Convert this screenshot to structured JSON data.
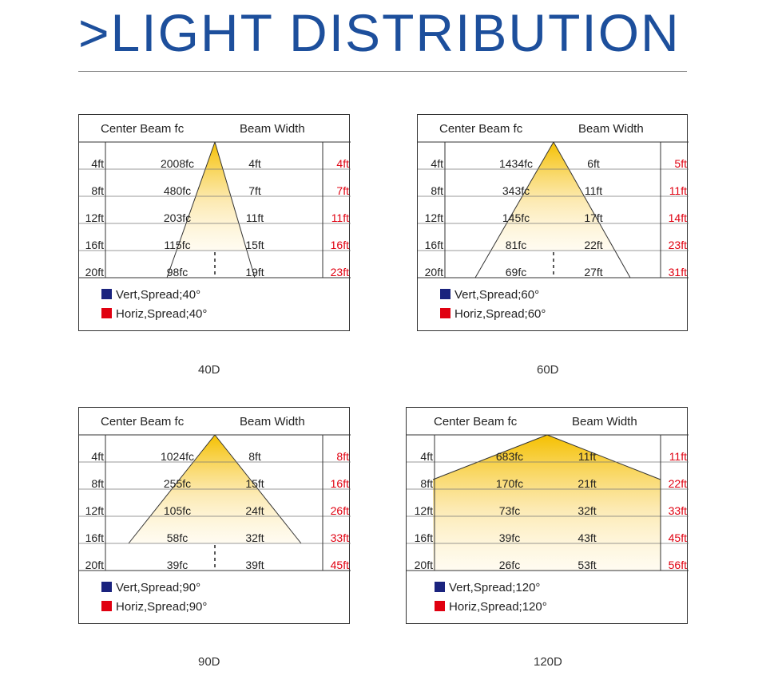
{
  "page": {
    "title": ">LIGHT DISTRIBUTION"
  },
  "colors": {
    "brand_blue": "#1d4f9c",
    "legend_vert": "#1a237e",
    "legend_horiz": "#e00010",
    "beam_glow": "#f5c000"
  },
  "panels": [
    {
      "caption": "40D",
      "header_left": "Center Beam fc",
      "header_right": "Beam Width",
      "distances": [
        "4ft",
        "8ft",
        "12ft",
        "16ft",
        "20ft"
      ],
      "center_fc": [
        "2008fc",
        "480fc",
        "203fc",
        "115fc",
        "98fc"
      ],
      "vert_width": [
        "4ft",
        "7ft",
        "11ft",
        "15ft",
        "19ft"
      ],
      "horiz_width": [
        "4ft",
        "7ft",
        "11ft",
        "16ft",
        "23ft"
      ],
      "legend_vert": "Vert,Spread;40°",
      "legend_horiz": "Horiz,Spread;40°"
    },
    {
      "caption": "60D",
      "header_left": "Center Beam fc",
      "header_right": "Beam Width",
      "distances": [
        "4ft",
        "8ft",
        "12ft",
        "16ft",
        "20ft"
      ],
      "center_fc": [
        "1434fc",
        "343fc",
        "145fc",
        "81fc",
        "69fc"
      ],
      "vert_width": [
        "6ft",
        "11ft",
        "17ft",
        "22ft",
        "27ft"
      ],
      "horiz_width": [
        "5ft",
        "11ft",
        "14ft",
        "23ft",
        "31ft"
      ],
      "legend_vert": "Vert,Spread;60°",
      "legend_horiz": "Horiz,Spread;60°"
    },
    {
      "caption": "90D",
      "header_left": "Center Beam fc",
      "header_right": "Beam Width",
      "distances": [
        "4ft",
        "8ft",
        "12ft",
        "16ft",
        "20ft"
      ],
      "center_fc": [
        "1024fc",
        "255fc",
        "105fc",
        "58fc",
        "39fc"
      ],
      "vert_width": [
        "8ft",
        "15ft",
        "24ft",
        "32ft",
        "39ft"
      ],
      "horiz_width": [
        "8ft",
        "16ft",
        "26ft",
        "33ft",
        "45ft"
      ],
      "legend_vert": "Vert,Spread;90°",
      "legend_horiz": "Horiz,Spread;90°"
    },
    {
      "caption": "120D",
      "header_left": "Center Beam fc",
      "header_right": "Beam Width",
      "distances": [
        "4ft",
        "8ft",
        "12ft",
        "16ft",
        "20ft"
      ],
      "center_fc": [
        "683fc",
        "170fc",
        "73fc",
        "39fc",
        "26fc"
      ],
      "vert_width": [
        "11ft",
        "21ft",
        "32ft",
        "43ft",
        "53ft"
      ],
      "horiz_width": [
        "11ft",
        "22ft",
        "33ft",
        "45ft",
        "56ft"
      ],
      "legend_vert": "Vert,Spread;120°",
      "legend_horiz": "Horiz,Spread;120°"
    }
  ]
}
